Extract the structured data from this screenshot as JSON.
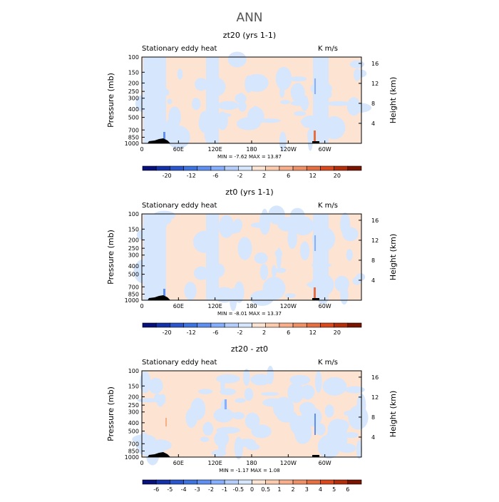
{
  "page_title": "ANN",
  "chart_data": [
    {
      "type": "heatmap",
      "title": "zt20 (yrs 1-1)",
      "left_label": "Stationary eddy heat",
      "right_label": "K m/s",
      "ylabel": "Pressure (mb)",
      "ylabel_right": "Height (km)",
      "x_ticks": [
        "0",
        "60E",
        "120E",
        "180",
        "120W",
        "60W"
      ],
      "x_tick_values": [
        0,
        60,
        120,
        180,
        240,
        300
      ],
      "xlim": [
        0,
        360
      ],
      "pressure_ticks": [
        100,
        150,
        200,
        250,
        300,
        400,
        500,
        700,
        850,
        1000
      ],
      "height_ticks": [
        4,
        8,
        12,
        16
      ],
      "ylim": [
        1000,
        100
      ],
      "min_max_label": "MIN =   -7.62   MAX =   13.87",
      "colorbar_labels": [
        "-20",
        "-12",
        "-6",
        "-2",
        "2",
        "6",
        "12",
        "20"
      ],
      "colorbar_colors": [
        "#08107a",
        "#1431a8",
        "#2a55cc",
        "#3e74e0",
        "#5f8ff0",
        "#87afff",
        "#b4cdfa",
        "#d6e6fd",
        "#fde3d2",
        "#fccaad",
        "#f8ae8a",
        "#f09066",
        "#e56f42",
        "#d84a1e",
        "#b52e0c",
        "#7a1400"
      ],
      "dominant_pos": "#fde3d2",
      "dominant_neg": "#d6e6fd"
    },
    {
      "type": "heatmap",
      "title": "zt0 (yrs 1-1)",
      "left_label": "Stationary eddy heat",
      "right_label": "K m/s",
      "ylabel": "Pressure (mb)",
      "ylabel_right": "Height (km)",
      "x_ticks": [
        "0",
        "60E",
        "120E",
        "180",
        "120W",
        "60W"
      ],
      "x_tick_values": [
        0,
        60,
        120,
        180,
        240,
        300
      ],
      "xlim": [
        0,
        360
      ],
      "pressure_ticks": [
        100,
        150,
        200,
        250,
        300,
        400,
        500,
        700,
        850,
        1000
      ],
      "height_ticks": [
        4,
        8,
        12,
        16
      ],
      "ylim": [
        1000,
        100
      ],
      "min_max_label": "MIN =   -8.01   MAX =   13.37",
      "colorbar_labels": [
        "-20",
        "-12",
        "-6",
        "-2",
        "2",
        "6",
        "12",
        "20"
      ],
      "colorbar_colors": [
        "#08107a",
        "#1431a8",
        "#2a55cc",
        "#3e74e0",
        "#5f8ff0",
        "#87afff",
        "#b4cdfa",
        "#d6e6fd",
        "#fde3d2",
        "#fccaad",
        "#f8ae8a",
        "#f09066",
        "#e56f42",
        "#d84a1e",
        "#b52e0c",
        "#7a1400"
      ],
      "dominant_pos": "#fde3d2",
      "dominant_neg": "#d6e6fd"
    },
    {
      "type": "heatmap",
      "title": "zt20 - zt0",
      "left_label": "Stationary eddy heat",
      "right_label": "K m/s",
      "ylabel": "Pressure (mb)",
      "ylabel_right": "Height (km)",
      "x_ticks": [
        "0",
        "60E",
        "120E",
        "180",
        "120W",
        "60W"
      ],
      "x_tick_values": [
        0,
        60,
        120,
        180,
        240,
        300
      ],
      "xlim": [
        0,
        360
      ],
      "pressure_ticks": [
        100,
        150,
        200,
        250,
        300,
        400,
        500,
        700,
        850,
        1000
      ],
      "height_ticks": [
        4,
        8,
        12,
        16
      ],
      "ylim": [
        1000,
        100
      ],
      "min_max_label": "MIN =   -1.17   MAX =   1.08",
      "colorbar_labels": [
        "-6",
        "-5",
        "-4",
        "-3",
        "-2",
        "-1",
        "-0.5",
        "0",
        "0.5",
        "1",
        "2",
        "3",
        "4",
        "5",
        "6"
      ],
      "colorbar_colors": [
        "#08107a",
        "#1431a8",
        "#2a55cc",
        "#3e74e0",
        "#5f8ff0",
        "#87afff",
        "#b4cdfa",
        "#d6e6fd",
        "#fde3d2",
        "#fccaad",
        "#f8ae8a",
        "#f09066",
        "#e56f42",
        "#d84a1e",
        "#b52e0c",
        "#7a1400"
      ],
      "dominant_pos": "#fde3d2",
      "dominant_neg": "#d6e6fd"
    }
  ]
}
